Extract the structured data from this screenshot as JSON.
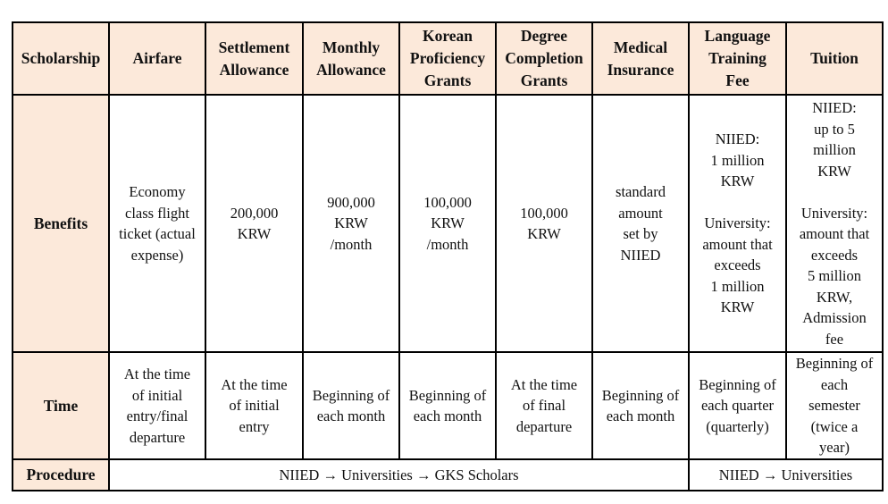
{
  "header": [
    "Scholarship",
    "Airfare",
    "Settlement\nAllowance",
    "Monthly\nAllowance",
    "Korean\nProficiency\nGrants",
    "Degree\nCompletion\nGrants",
    "Medical\nInsurance",
    "Language\nTraining\nFee",
    "Tuition"
  ],
  "benefits": {
    "label": "Benefits",
    "cells": [
      "Economy\nclass flight\nticket (actual\nexpense)",
      "200,000\nKRW",
      "900,000\nKRW\n/month",
      "100,000\nKRW\n/month",
      "100,000\nKRW",
      "standard\namount\nset by\nNIIED",
      "NIIED:\n1 million\nKRW\n\nUniversity:\namount that\nexceeds\n1 million\nKRW",
      "NIIED:\nup to 5\nmillion\nKRW\n\nUniversity:\namount that\nexceeds\n5 million\nKRW,\nAdmission\nfee"
    ]
  },
  "time": {
    "label": "Time",
    "cells": [
      "At the time\nof initial\nentry/final\ndeparture",
      "At the time\nof initial\nentry",
      "Beginning of\neach month",
      "Beginning of\neach month",
      "At the time\nof final\ndeparture",
      "Beginning of\neach month",
      "Beginning of\neach quarter\n(quarterly)",
      "Beginning of\neach\nsemester\n(twice a\nyear)"
    ]
  },
  "procedure": {
    "label": "Procedure",
    "cells": [
      "NIIED → Universities → GKS Scholars",
      "NIIED → Universities"
    ]
  },
  "colors": {
    "header_bg": "#fce9da",
    "border": "#000000"
  }
}
